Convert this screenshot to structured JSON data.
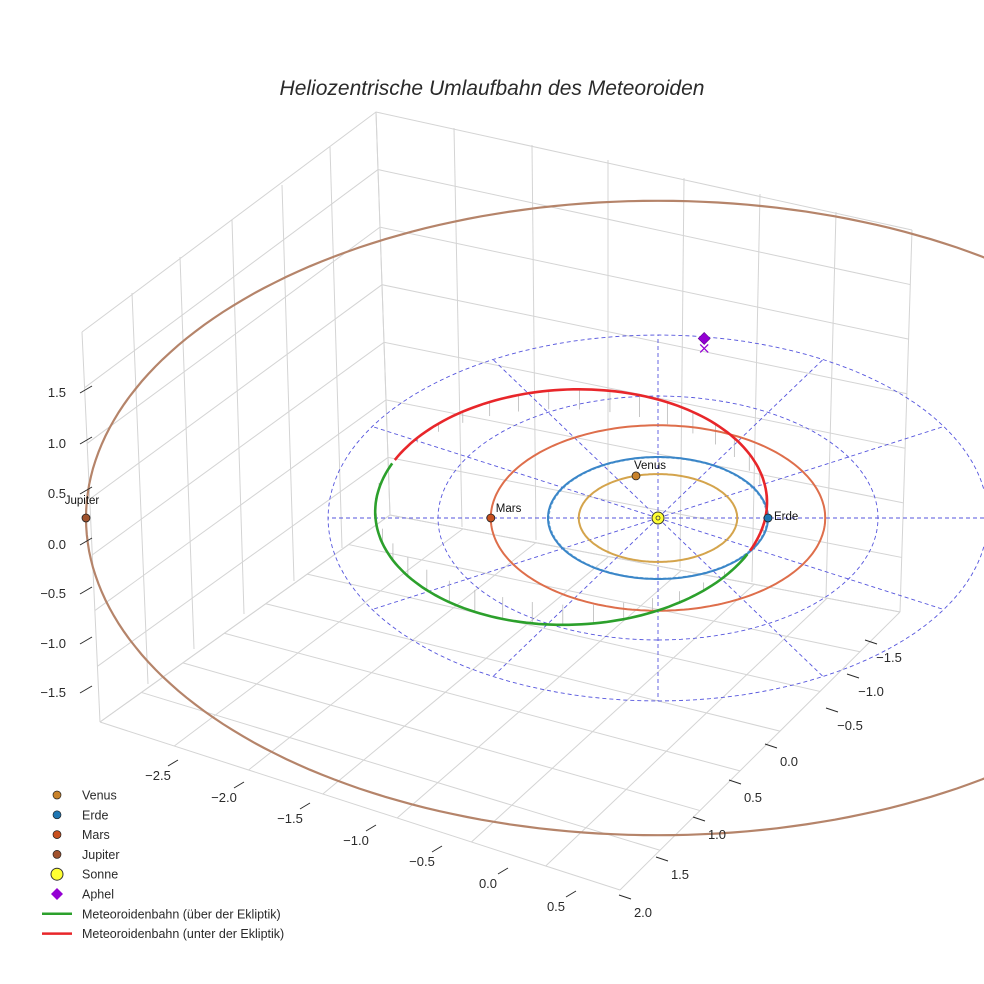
{
  "chart_data": {
    "type": "3d-line",
    "title": "Heliozentrische Umlaufbahn des Meteoroiden",
    "x_ticks": [
      "−2.5",
      "−2.0",
      "−1.5",
      "−1.0",
      "−0.5",
      "0.0",
      "0.5"
    ],
    "y_ticks": [
      "−1.5",
      "−1.0",
      "−0.5",
      "0.0",
      "0.5",
      "1.0",
      "1.5",
      "2.0"
    ],
    "z_ticks": [
      "1.5",
      "1.0",
      "0.5",
      "0.0",
      "−0.5",
      "−1.0",
      "−1.5"
    ],
    "planets": [
      {
        "name": "Venus",
        "label": "Venus",
        "color": "#c9822a",
        "orbit_color": "#d4a44c",
        "radius_au": 0.72,
        "position": [
          -0.69,
          -0.2,
          0
        ]
      },
      {
        "name": "Erde",
        "label": "Erde",
        "color": "#1f77b4",
        "orbit_color": "#3a86c8",
        "radius_au": 1.0,
        "position": [
          0.0,
          1.0,
          0
        ]
      },
      {
        "name": "Mars",
        "label": "Mars",
        "color": "#c8501e",
        "orbit_color": "#de6e4b",
        "radius_au": 1.52,
        "position": [
          0.0,
          -1.52,
          0
        ]
      },
      {
        "name": "Jupiter",
        "label": "Jupiter",
        "color": "#a0522d",
        "orbit_color": "#b5846a",
        "radius_au": 5.2,
        "position": [
          0.0,
          -5.2,
          0
        ]
      }
    ],
    "sun": {
      "name": "Sonne",
      "color": "#ffff33",
      "position": [
        0,
        0,
        0
      ]
    },
    "aphel": {
      "name": "Aphel",
      "color": "#9400d3",
      "position": [
        -2.55,
        0.42,
        0.24
      ]
    },
    "meteoroid_orbit": {
      "perihelion_au": 0.98,
      "aphelion_au": 2.6,
      "series": [
        {
          "name": "Meteoroidenbahn (über der Ekliptik)",
          "color": "#2ca02c"
        },
        {
          "name": "Meteoroidenbahn (unter der Ekliptik)",
          "color": "#e8262a"
        }
      ]
    },
    "ecliptic_grid": {
      "color": "#5555dd",
      "rings_au": [
        1.0,
        2.0,
        3.0
      ],
      "spokes": 12
    },
    "legend": {
      "position": "bottom-left",
      "items": [
        "Venus",
        "Erde",
        "Mars",
        "Jupiter",
        "Sonne",
        "Aphel",
        "Meteoroidenbahn (über der Ekliptik)",
        "Meteoroidenbahn (unter der Ekliptik)"
      ]
    }
  }
}
